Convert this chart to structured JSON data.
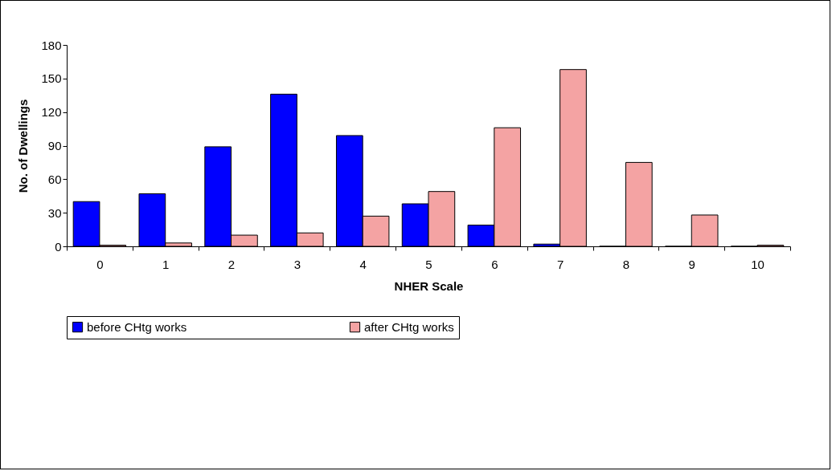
{
  "chart_data": {
    "type": "bar",
    "xlabel": "NHER Scale",
    "ylabel": "No. of Dwellings",
    "categories": [
      "0",
      "1",
      "2",
      "3",
      "4",
      "5",
      "6",
      "7",
      "8",
      "9",
      "10"
    ],
    "series": [
      {
        "name": "before CHtg works",
        "color": "#0000ff",
        "values": [
          40,
          47,
          89,
          136,
          99,
          38,
          19,
          2,
          0,
          0,
          0
        ]
      },
      {
        "name": "after CHtg works",
        "color": "#f4a3a3",
        "values": [
          1,
          3,
          10,
          12,
          27,
          49,
          106,
          158,
          75,
          28,
          1
        ]
      }
    ],
    "ylim": [
      0,
      180
    ],
    "yticks": [
      0,
      30,
      60,
      90,
      120,
      150,
      180
    ],
    "grid": false,
    "legend": "bottom"
  }
}
